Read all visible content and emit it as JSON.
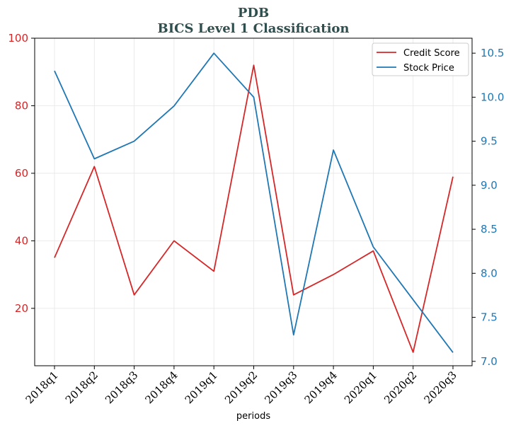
{
  "chart_data": {
    "type": "line",
    "title": "PDB",
    "subtitle": "BICS Level 1 Classification",
    "xlabel": "periods",
    "categories": [
      "2018q1",
      "2018q2",
      "2018q3",
      "2018q4",
      "2019q1",
      "2019q2",
      "2019q3",
      "2019q4",
      "2020q1",
      "2020q2",
      "2020q3"
    ],
    "left_axis": {
      "ylim": [
        3,
        100
      ],
      "ticks": [
        20,
        40,
        60,
        80,
        100
      ],
      "color": "#d62728"
    },
    "right_axis": {
      "ylim": [
        6.95,
        10.67
      ],
      "ticks": [
        7.0,
        7.5,
        8.0,
        8.5,
        9.0,
        9.5,
        10.0,
        10.5
      ],
      "tick_labels": [
        "7.0",
        "7.5",
        "8.0",
        "8.5",
        "9.0",
        "9.5",
        "10.0",
        "10.5"
      ],
      "color": "#1f77b4"
    },
    "series": [
      {
        "name": "Credit Score",
        "axis": "left",
        "color": "#d62728",
        "values": [
          35,
          62,
          24,
          40,
          31,
          92,
          24,
          30,
          37,
          7,
          59
        ]
      },
      {
        "name": "Stock Price",
        "axis": "right",
        "color": "#1f77b4",
        "values": [
          10.3,
          9.3,
          9.5,
          9.9,
          10.5,
          10.0,
          7.3,
          9.4,
          8.3,
          7.7,
          7.1
        ]
      }
    ],
    "grid": true,
    "legend_position": "top-right"
  }
}
